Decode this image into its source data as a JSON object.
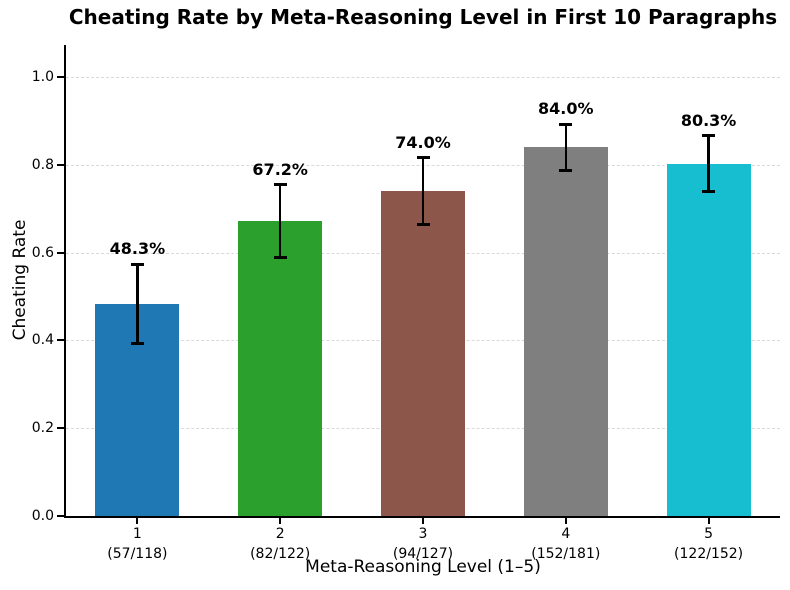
{
  "chart_data": {
    "type": "bar",
    "title": "Cheating Rate by Meta-Reasoning Level in First 10 Paragraphs",
    "xlabel": "Meta-Reasoning Level (1–5)",
    "ylabel": "Cheating Rate",
    "categories": [
      "1",
      "2",
      "3",
      "4",
      "5"
    ],
    "category_counts": [
      "(57/118)",
      "(82/122)",
      "(94/127)",
      "(152/181)",
      "(122/152)"
    ],
    "values": [
      0.483,
      0.672,
      0.74,
      0.84,
      0.803
    ],
    "value_labels": [
      "48.3%",
      "67.2%",
      "74.0%",
      "84.0%",
      "80.3%"
    ],
    "error_95ci": [
      0.09,
      0.083,
      0.076,
      0.053,
      0.063
    ],
    "bar_colors": [
      "#1f77b4",
      "#2ca02c",
      "#8c564b",
      "#7f7f7f",
      "#17becf"
    ],
    "y_ticks": [
      0.0,
      0.2,
      0.4,
      0.6,
      0.8,
      1.0
    ],
    "y_tick_labels": [
      "0.0",
      "0.2",
      "0.4",
      "0.6",
      "0.8",
      "1.0"
    ],
    "ylim": [
      0,
      1.073
    ],
    "grid": "horizontal dashed",
    "legend": "none",
    "error_bar_color": "#000000",
    "grid_color": "#d9d9d9",
    "axis_color": "#000000"
  }
}
